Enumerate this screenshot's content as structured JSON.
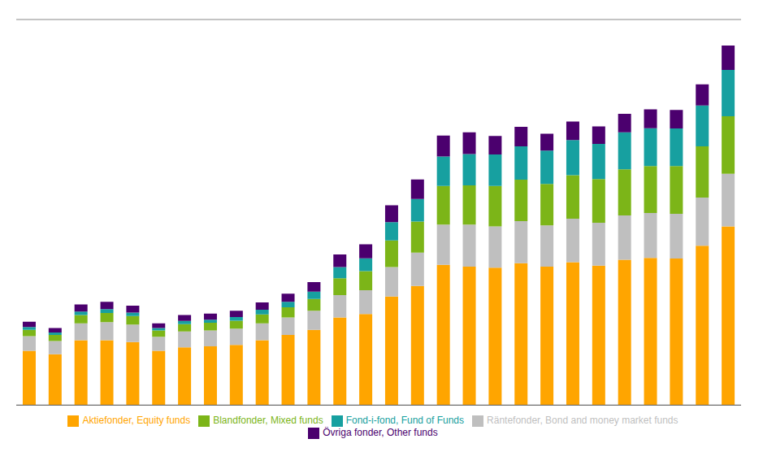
{
  "chart_data": {
    "type": "bar",
    "stacked": true,
    "grid": true,
    "legend": "bottom",
    "tick_labels": false,
    "categories": [
      null,
      null,
      null,
      null,
      null,
      null,
      null,
      null,
      null,
      null,
      null,
      null,
      null,
      null,
      null,
      null,
      null,
      null,
      null,
      null,
      null,
      null,
      null,
      null,
      null,
      null,
      null,
      null
    ],
    "ylim": [
      0,
      1100
    ],
    "yticks": [
      0,
      122.22222222222223,
      244.44444444444446,
      366.6666666666667,
      488.8888888888889,
      611.1111111111111,
      733.3333333333334,
      855.5555555555555,
      977.7777777777778,
      1100
    ],
    "series": [
      {
        "name": "Aktiefonder, Equity funds",
        "color": "#FFA500",
        "values": [
          155,
          145,
          185,
          185,
          180,
          155,
          165,
          168,
          172,
          185,
          200,
          215,
          250,
          260,
          310,
          340,
          400,
          395,
          392,
          405,
          395,
          408,
          398,
          415,
          420,
          418,
          455,
          510
        ]
      },
      {
        "name": "Räntefonder, Bond and money market funds",
        "color": "#BFBFBF",
        "values": [
          42,
          38,
          48,
          52,
          50,
          40,
          45,
          45,
          46,
          48,
          50,
          54,
          64,
          68,
          84,
          95,
          115,
          120,
          118,
          120,
          118,
          124,
          122,
          126,
          128,
          128,
          137,
          150
        ]
      },
      {
        "name": "Blandfonder, Mixed funds",
        "color": "#7CB518",
        "values": [
          18,
          17,
          24,
          26,
          24,
          18,
          21,
          22,
          23,
          26,
          29,
          34,
          48,
          54,
          76,
          89,
          110,
          112,
          115,
          118,
          118,
          124,
          125,
          132,
          134,
          136,
          146,
          164
        ]
      },
      {
        "name": "Fond-i-fond, Fund of Funds",
        "color": "#17A0A0",
        "values": [
          8,
          7,
          10,
          11,
          10,
          7,
          9,
          9,
          10,
          13,
          16,
          21,
          32,
          37,
          52,
          64,
          84,
          89,
          90,
          95,
          95,
          100,
          100,
          105,
          108,
          107,
          117,
          132
        ]
      },
      {
        "name": "Övriga fonder, Other funds",
        "color": "#4B006E",
        "values": [
          15,
          13,
          20,
          21,
          20,
          13,
          17,
          17,
          18,
          21,
          23,
          27,
          36,
          40,
          48,
          56,
          60,
          62,
          53,
          56,
          48,
          53,
          50,
          53,
          54,
          53,
          60,
          70
        ]
      }
    ]
  }
}
